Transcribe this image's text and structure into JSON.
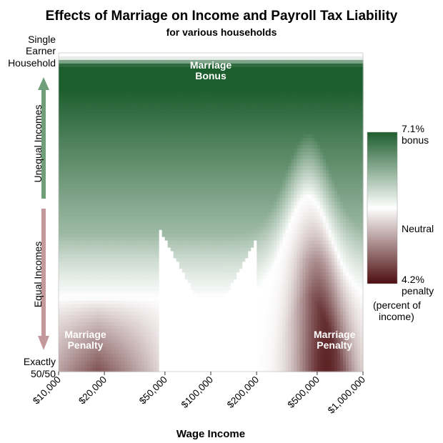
{
  "chart_data": {
    "type": "heatmap",
    "title": "Effects of Marriage on Income and Payroll Tax Liability",
    "subtitle": "for various households",
    "xlabel": "Wage Income",
    "x_scale": "log",
    "x_ticks": [
      "$10,000",
      "$20,000",
      "$50,000",
      "$100,000",
      "$200,000",
      "$500,000",
      "$1,000,000"
    ],
    "x_tick_values": [
      10000,
      20000,
      50000,
      100000,
      200000,
      500000,
      1000000
    ],
    "xlim": [
      10000,
      1000000
    ],
    "y_top_label": "Single Earner Household",
    "y_bottom_label": "Exactly 50/50",
    "y_arrow_up_label": "Unequal Incomes",
    "y_arrow_down_label": "Equal Incomes",
    "annotations": [
      {
        "text": "Marriage Bonus",
        "x": 100000,
        "y_position": "top"
      },
      {
        "text": "Marriage Penalty",
        "x": 15000,
        "y_position": "bottom"
      },
      {
        "text": "Marriage Penalty",
        "x": 650000,
        "y_position": "bottom"
      }
    ],
    "colorbar": {
      "max_label": "7.1%",
      "max_sub": "bonus",
      "mid_label": "Neutral",
      "min_label": "4.2%",
      "min_sub": "penalty",
      "unit_line1": "(percent of",
      "unit_line2": "income)",
      "max_value": 7.1,
      "min_value": -4.2,
      "bonus_color": "#1d5e2e",
      "neutral_color": "#ffffff",
      "penalty_color": "#4d0e10"
    },
    "arrow_up_color": "#6f9e78",
    "arrow_down_color": "#c4999b"
  }
}
